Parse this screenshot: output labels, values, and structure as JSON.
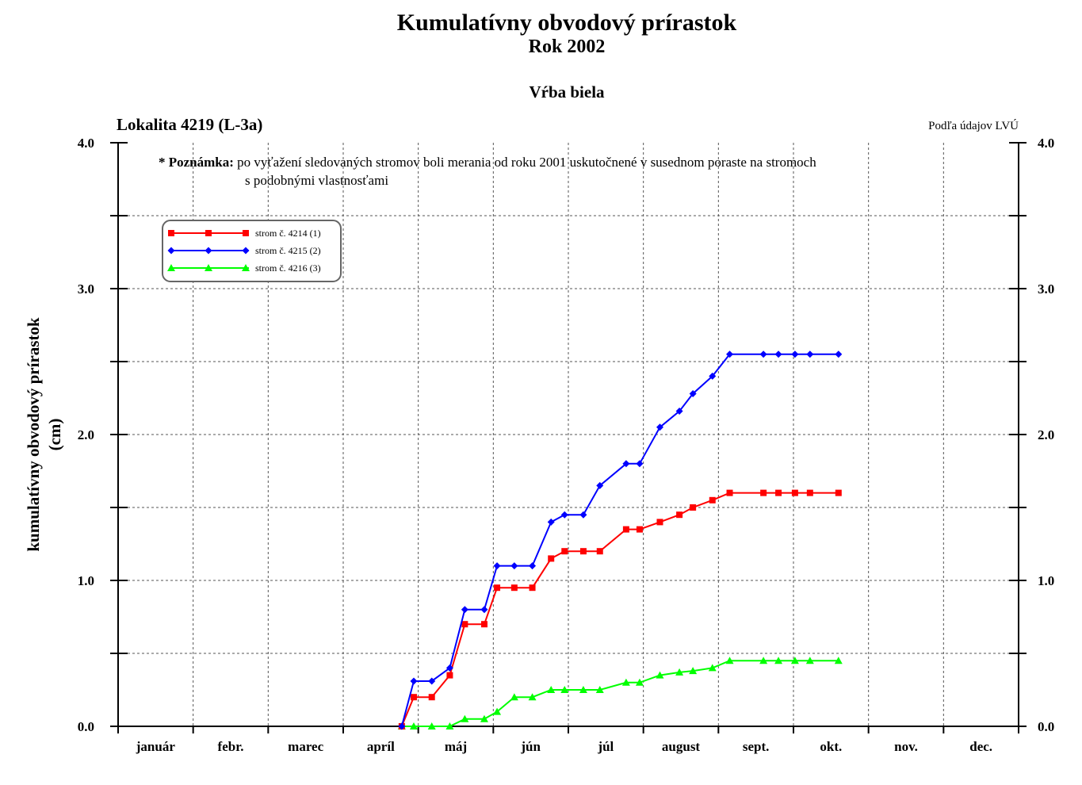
{
  "chart_data": {
    "type": "line",
    "title": "Kumulatívny obvodový prírastok",
    "subtitle": "Rok 2002",
    "species": "Vŕba biela",
    "locality": "Lokalita 4219 (L-3a)",
    "source": "Podľa údajov LVÚ",
    "note": {
      "lead": "* Poznámka:",
      "line1": "po vyťažení sledovaných stromov boli merania od roku 2001 uskutočnené v susednom poraste na stromoch",
      "line2": "s podobnými vlastnosťami"
    },
    "ylabel_line1": "kumulatívny obvodový prírastok",
    "ylabel_line2": "(cm)",
    "ylim": [
      0,
      4
    ],
    "yticks": [
      "0.0",
      "1.0",
      "2.0",
      "3.0",
      "4.0"
    ],
    "x_categories": [
      "január",
      "febr.",
      "marec",
      "apríl",
      "máj",
      "jún",
      "júl",
      "august",
      "sept.",
      "okt.",
      "nov.",
      "dec."
    ],
    "xlim_months": [
      0,
      12
    ],
    "grid": true,
    "legend_position": "top-left",
    "x": [
      3.78,
      3.94,
      4.18,
      4.42,
      4.62,
      4.88,
      5.05,
      5.28,
      5.52,
      5.77,
      5.95,
      6.2,
      6.42,
      6.77,
      6.95,
      7.22,
      7.48,
      7.66,
      7.92,
      8.15,
      8.6,
      8.8,
      9.02,
      9.22,
      9.6
    ],
    "series": [
      {
        "name": "strom č. 4214 (1)",
        "color": "#ff0000",
        "marker": "square",
        "values": [
          0.0,
          0.2,
          0.2,
          0.35,
          0.7,
          0.7,
          0.95,
          0.95,
          0.95,
          1.15,
          1.2,
          1.2,
          1.2,
          1.35,
          1.35,
          1.4,
          1.45,
          1.5,
          1.55,
          1.6,
          1.6,
          1.6,
          1.6,
          1.6,
          1.6
        ]
      },
      {
        "name": "strom č. 4215 (2)",
        "color": "#0000ff",
        "marker": "diamond",
        "values": [
          0.0,
          0.31,
          0.31,
          0.4,
          0.8,
          0.8,
          1.1,
          1.1,
          1.1,
          1.4,
          1.45,
          1.45,
          1.65,
          1.8,
          1.8,
          2.05,
          2.16,
          2.28,
          2.4,
          2.55,
          2.55,
          2.55,
          2.55,
          2.55,
          2.55
        ]
      },
      {
        "name": "strom č. 4216 (3)",
        "color": "#00ff00",
        "marker": "triangle",
        "values": [
          0.0,
          0.0,
          0.0,
          0.0,
          0.05,
          0.05,
          0.1,
          0.2,
          0.2,
          0.25,
          0.25,
          0.25,
          0.25,
          0.3,
          0.3,
          0.35,
          0.37,
          0.38,
          0.4,
          0.45,
          0.45,
          0.45,
          0.45,
          0.45,
          0.45
        ]
      }
    ]
  }
}
